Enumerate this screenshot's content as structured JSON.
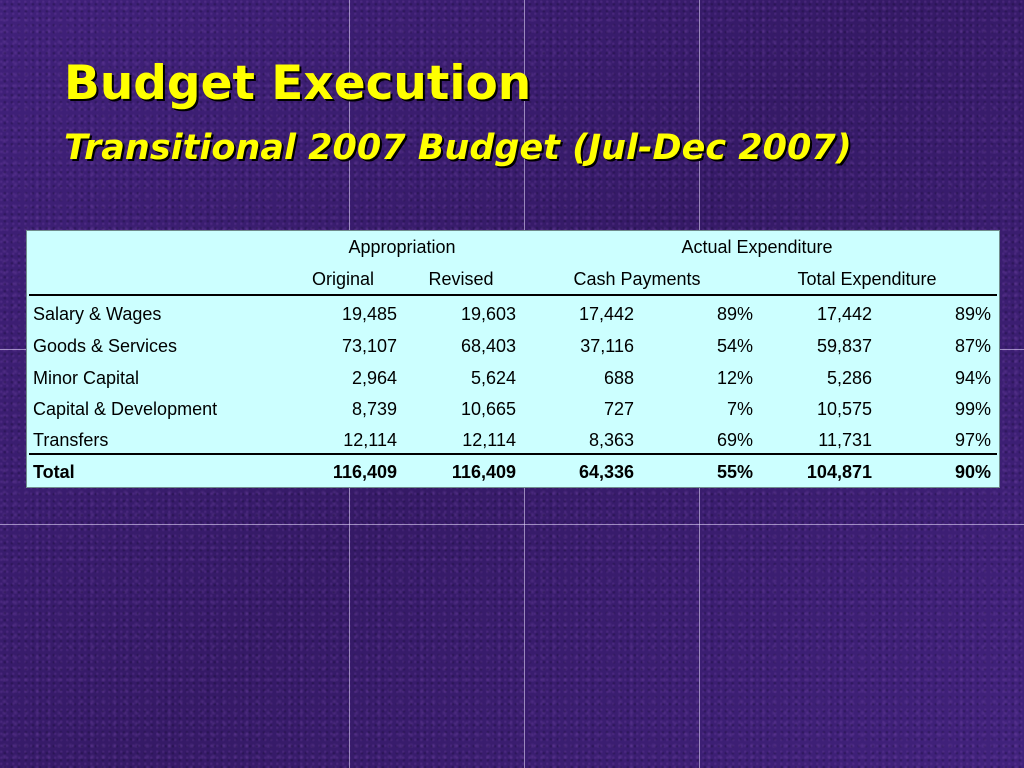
{
  "slide": {
    "title": "Budget Execution",
    "subtitle": "Transitional 2007 Budget (Jul-Dec 2007)"
  },
  "table": {
    "group_headers": {
      "appropriation": "Appropriation",
      "actual_expenditure": "Actual Expenditure"
    },
    "column_headers": {
      "original": "Original",
      "revised": "Revised",
      "cash_payments": "Cash Payments",
      "total_expenditure": "Total Expenditure"
    },
    "rows": [
      {
        "label": "Salary & Wages",
        "original": "19,485",
        "revised": "19,603",
        "cash": "17,442",
        "cash_pct": "89%",
        "total": "17,442",
        "total_pct": "89%"
      },
      {
        "label": "Goods & Services",
        "original": "73,107",
        "revised": "68,403",
        "cash": "37,116",
        "cash_pct": "54%",
        "total": "59,837",
        "total_pct": "87%"
      },
      {
        "label": "Minor Capital",
        "original": "2,964",
        "revised": "5,624",
        "cash": "688",
        "cash_pct": "12%",
        "total": "5,286",
        "total_pct": "94%"
      },
      {
        "label": "Capital & Development",
        "original": "8,739",
        "revised": "10,665",
        "cash": "727",
        "cash_pct": "7%",
        "total": "10,575",
        "total_pct": "99%"
      },
      {
        "label": "Transfers",
        "original": "12,114",
        "revised": "12,114",
        "cash": "8,363",
        "cash_pct": "69%",
        "total": "11,731",
        "total_pct": "97%"
      }
    ],
    "total_row": {
      "label": "Total",
      "original": "116,409",
      "revised": "116,409",
      "cash": "64,336",
      "cash_pct": "55%",
      "total": "104,871",
      "total_pct": "90%"
    }
  },
  "colors": {
    "background": "#3a1e6e",
    "title_text": "#ffff00",
    "table_background": "#ccffff"
  }
}
